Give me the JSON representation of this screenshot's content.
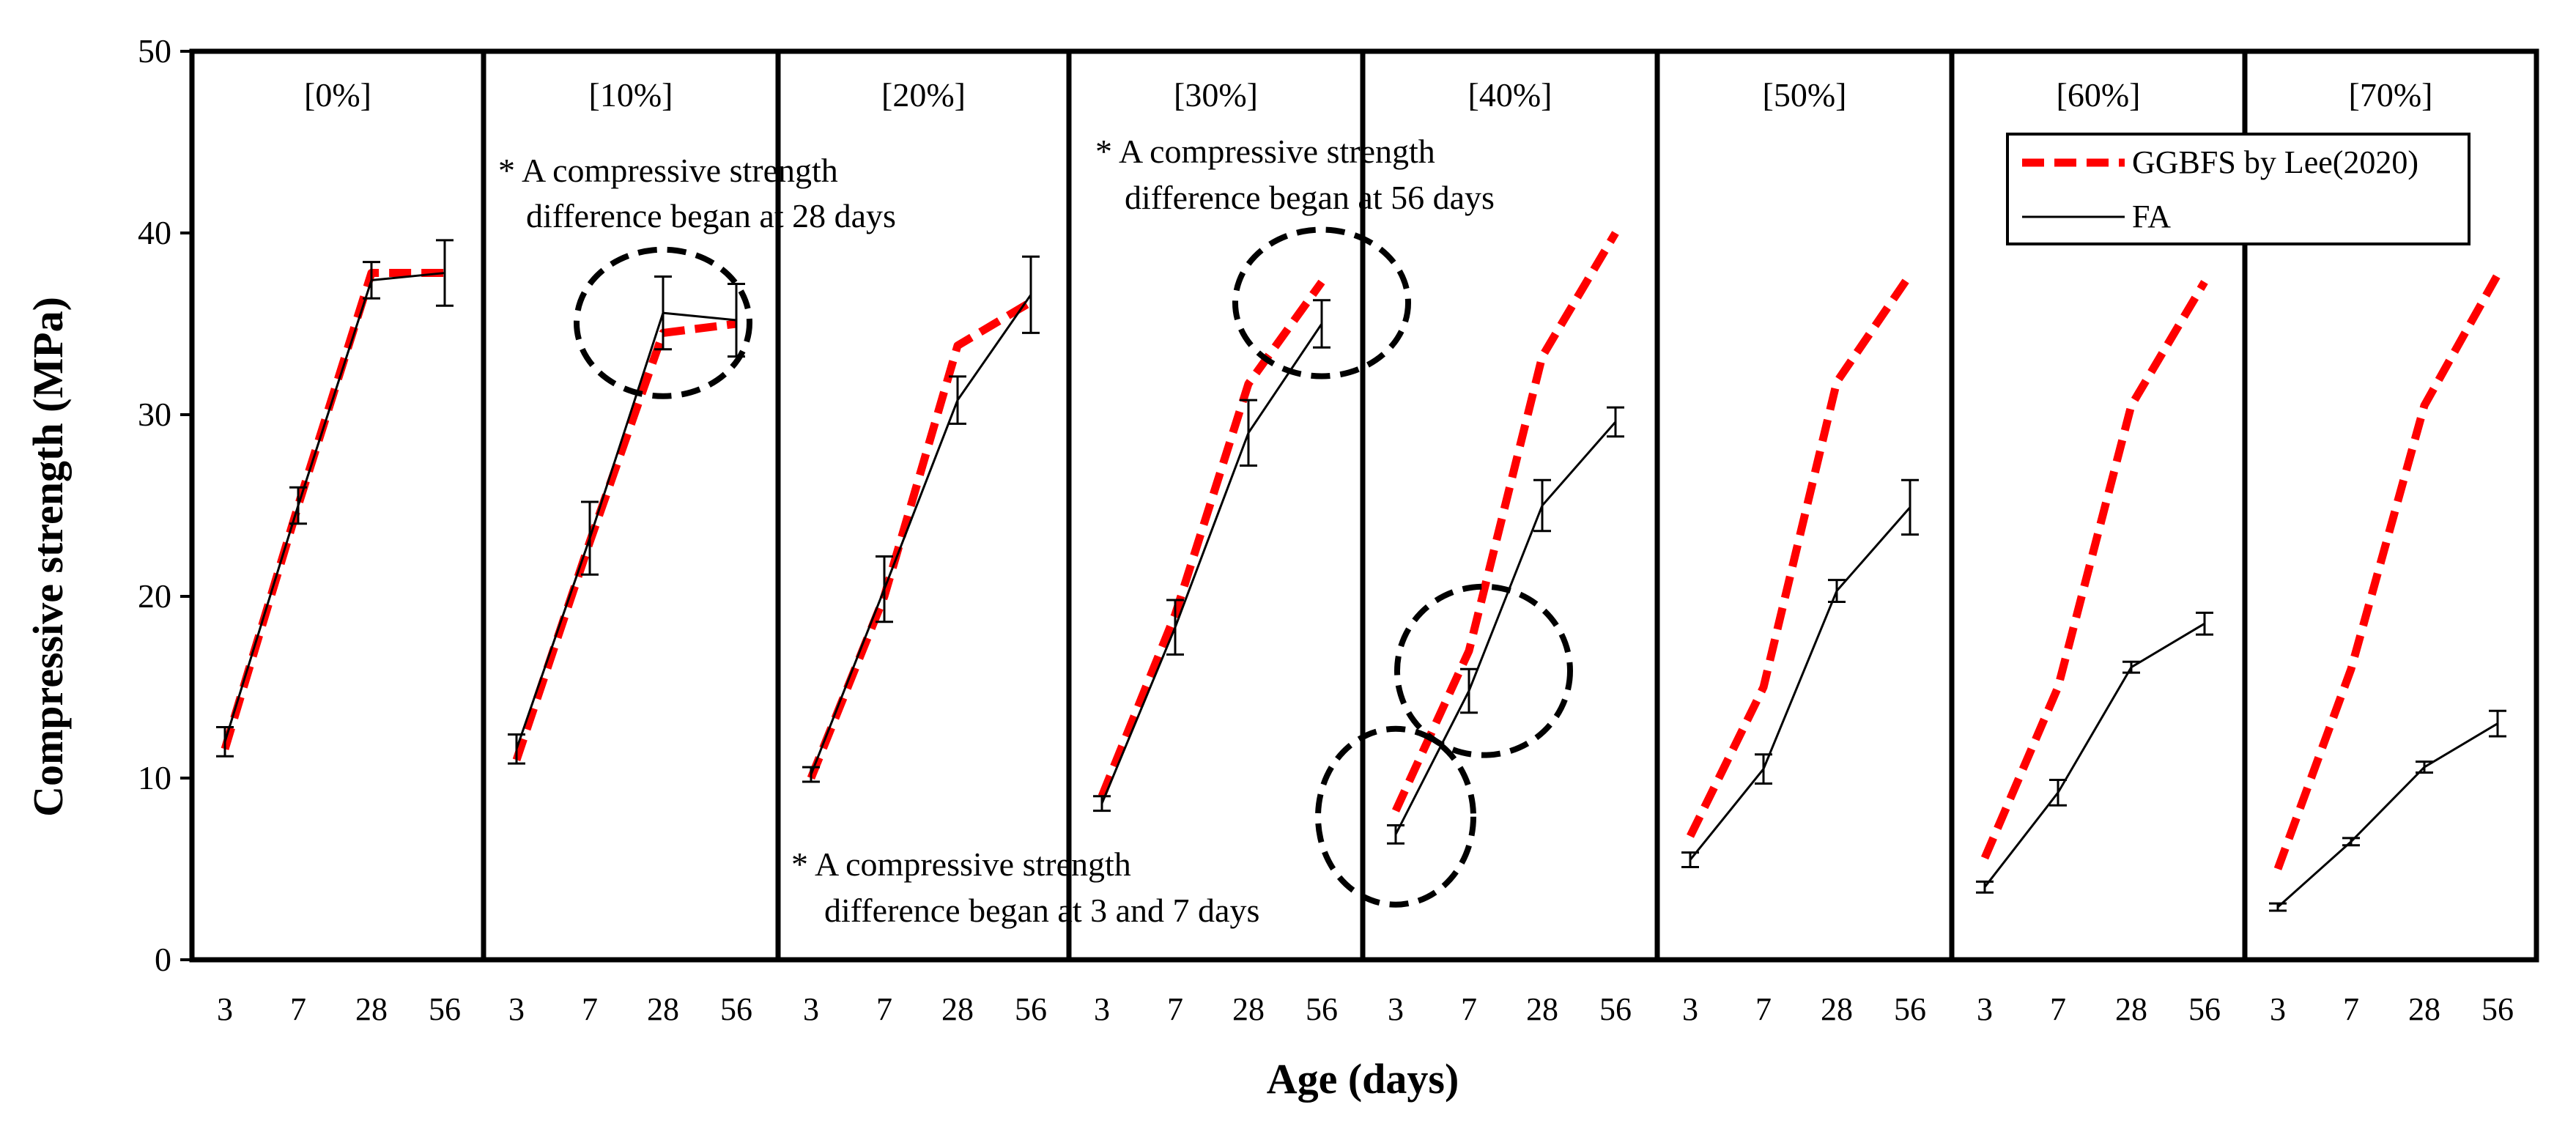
{
  "chart_data": {
    "type": "line",
    "title": "",
    "xlabel": "Age (days)",
    "ylabel": "Compressive strength (MPa)",
    "ylim": [
      0,
      50
    ],
    "yticks": [
      0,
      10,
      20,
      30,
      40,
      50
    ],
    "categories": [
      "3",
      "7",
      "28",
      "56"
    ],
    "grid": false,
    "legend_position": "top-right",
    "legend": [
      {
        "label": "GGBFS by Lee(2020)",
        "series": "ggbfs",
        "color": "#ff0000",
        "dashed": true
      },
      {
        "label": "FA",
        "series": "fa",
        "color": "#000000",
        "dashed": false
      }
    ],
    "panels": [
      {
        "label": "[0%]",
        "ggbfs": [
          11.6,
          25.0,
          37.8,
          37.8
        ],
        "fa": [
          12.0,
          25.0,
          37.4,
          37.8
        ],
        "fa_err": [
          0.8,
          1.0,
          1.0,
          1.8
        ]
      },
      {
        "label": "[10%]",
        "ggbfs": [
          11.0,
          23.0,
          34.5,
          35.0
        ],
        "fa": [
          11.6,
          23.2,
          35.6,
          35.2
        ],
        "fa_err": [
          0.8,
          2.0,
          2.0,
          2.0
        ]
      },
      {
        "label": "[20%]",
        "ggbfs": [
          10.0,
          20.0,
          33.8,
          36.2
        ],
        "fa": [
          10.2,
          20.4,
          30.8,
          36.6
        ],
        "fa_err": [
          0.4,
          1.8,
          1.3,
          2.1
        ]
      },
      {
        "label": "[30%]",
        "ggbfs": [
          9.0,
          19.0,
          31.7,
          37.3
        ],
        "fa": [
          8.6,
          18.3,
          29.0,
          35.0
        ],
        "fa_err": [
          0.4,
          1.5,
          1.8,
          1.3
        ]
      },
      {
        "label": "[40%]",
        "ggbfs": [
          8.2,
          17.0,
          33.2,
          40.0
        ],
        "fa": [
          6.9,
          14.8,
          25.0,
          29.6
        ],
        "fa_err": [
          0.5,
          1.2,
          1.4,
          0.8
        ]
      },
      {
        "label": "[50%]",
        "ggbfs": [
          6.8,
          15.0,
          31.8,
          37.7
        ],
        "fa": [
          5.5,
          10.5,
          20.3,
          24.9
        ],
        "fa_err": [
          0.4,
          0.8,
          0.6,
          1.5
        ]
      },
      {
        "label": "[60%]",
        "ggbfs": [
          5.6,
          15.0,
          30.5,
          37.3
        ],
        "fa": [
          4.0,
          9.2,
          16.1,
          18.5
        ],
        "fa_err": [
          0.3,
          0.7,
          0.3,
          0.6
        ]
      },
      {
        "label": "[70%]",
        "ggbfs": [
          5.0,
          16.0,
          30.5,
          37.7
        ],
        "fa": [
          2.9,
          6.5,
          10.6,
          13.0
        ],
        "fa_err": [
          0.2,
          0.2,
          0.3,
          0.7
        ]
      }
    ],
    "annotations": [
      {
        "lines": [
          "* A compressive strength",
          "difference began at 28 days"
        ]
      },
      {
        "lines": [
          "* A compressive strength",
          "difference began at 56 days"
        ]
      },
      {
        "lines": [
          "* A compressive strength",
          "difference began at 3 and 7 days"
        ]
      }
    ],
    "highlight_circles": [
      {
        "panel": 1,
        "category": "28"
      },
      {
        "panel": 3,
        "category": "56"
      },
      {
        "panel": 4,
        "category": "3"
      },
      {
        "panel": 4,
        "category": "7"
      }
    ]
  }
}
